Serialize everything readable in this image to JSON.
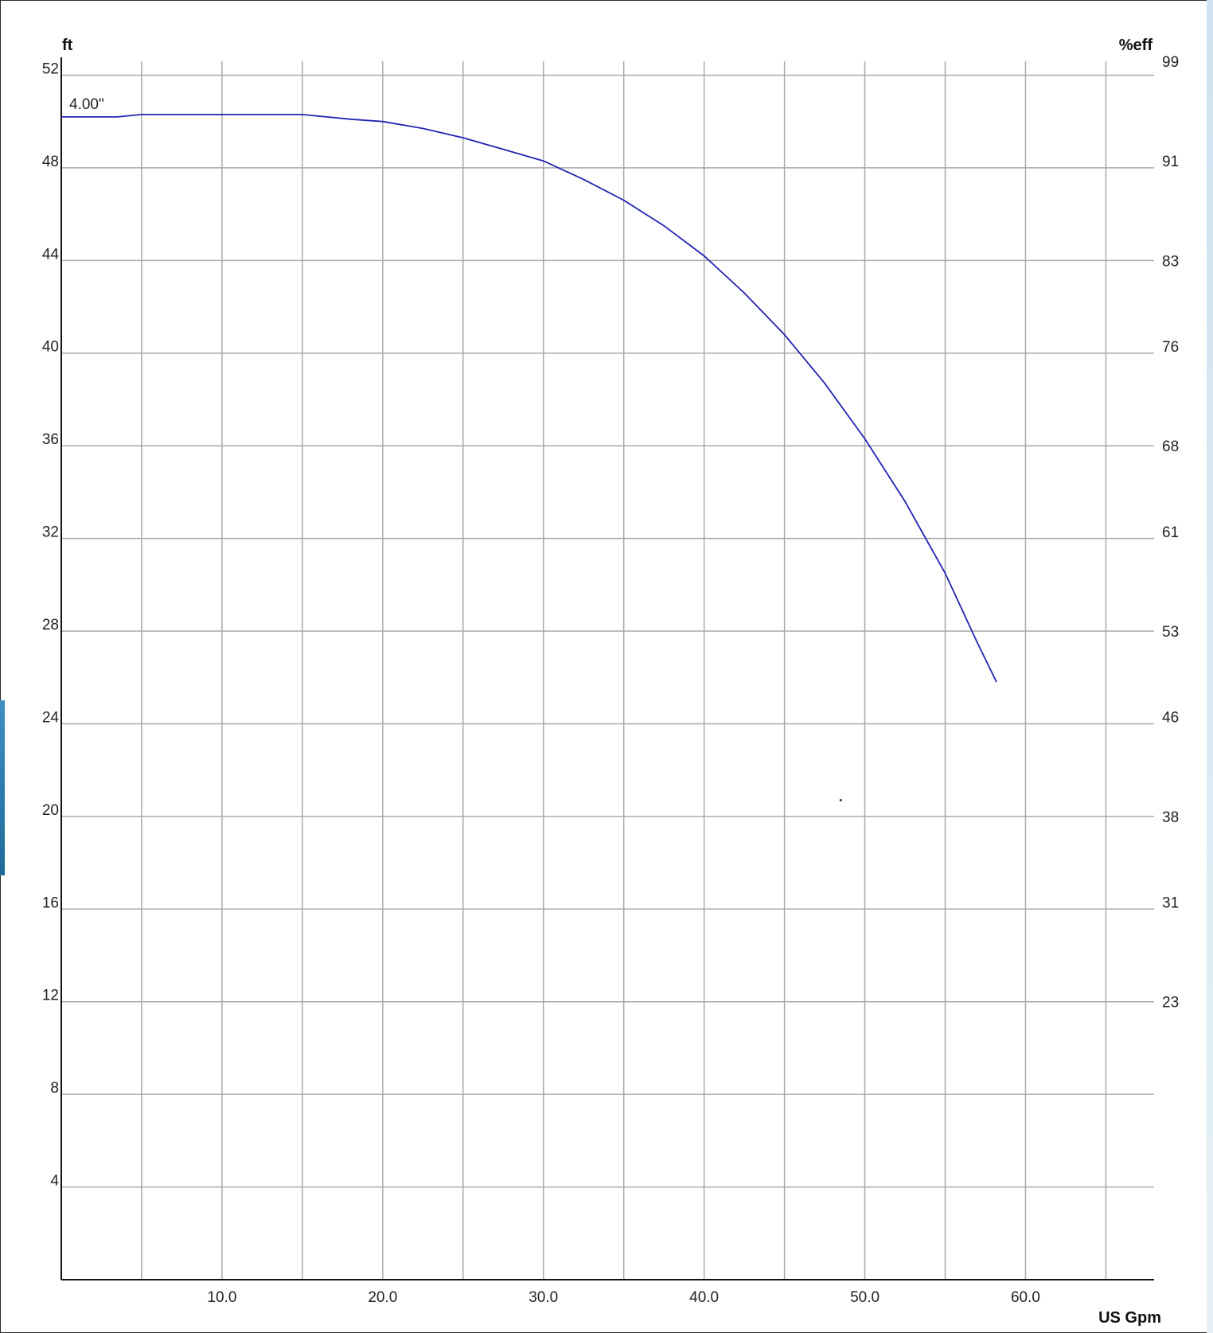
{
  "chart_data": {
    "type": "line",
    "xlabel": "US Gpm",
    "ylabel": "ft",
    "y2label": "%eff",
    "xlim": [
      0,
      68
    ],
    "ylim": [
      0,
      52.6
    ],
    "x_ticks": [
      10,
      20,
      30,
      40,
      50,
      60
    ],
    "x_tick_labels": [
      "10.0",
      "20.0",
      "30.0",
      "40.0",
      "50.0",
      "60.0"
    ],
    "y_ticks": [
      4,
      8,
      12,
      16,
      20,
      24,
      28,
      32,
      36,
      40,
      44,
      48,
      52
    ],
    "y_tick_labels": [
      "4",
      "8",
      "12",
      "16",
      "20",
      "24",
      "28",
      "32",
      "36",
      "40",
      "44",
      "48",
      "52"
    ],
    "y2_ticks": [
      {
        "label": "99",
        "at_y": 52.6
      },
      {
        "label": "91",
        "at_y": 48.3
      },
      {
        "label": "83",
        "at_y": 44.0
      },
      {
        "label": "76",
        "at_y": 40.3
      },
      {
        "label": "68",
        "at_y": 36.0
      },
      {
        "label": "61",
        "at_y": 32.3
      },
      {
        "label": "53",
        "at_y": 28.0
      },
      {
        "label": "46",
        "at_y": 24.3
      },
      {
        "label": "38",
        "at_y": 20.0
      },
      {
        "label": "31",
        "at_y": 16.3
      },
      {
        "label": "23",
        "at_y": 12.0
      }
    ],
    "x_gridlines": [
      5,
      10,
      15,
      20,
      25,
      30,
      35,
      40,
      45,
      50,
      55,
      60,
      65
    ],
    "y_gridlines": [
      4,
      8,
      12,
      16,
      20,
      24,
      28,
      32,
      36,
      40,
      44,
      48,
      52
    ],
    "grid": true,
    "series": [
      {
        "name": "4.00\"",
        "color": "#2323b4",
        "x": [
          0,
          3.5,
          5,
          10,
          15,
          18,
          20,
          22.5,
          25,
          27.5,
          30,
          32.5,
          35,
          37.5,
          40,
          42.5,
          45,
          47.5,
          50,
          52.5,
          55,
          57,
          58.2
        ],
        "y": [
          50.2,
          50.2,
          50.3,
          50.3,
          50.3,
          50.1,
          50.0,
          49.7,
          49.3,
          48.8,
          48.3,
          47.5,
          46.6,
          45.5,
          44.2,
          42.6,
          40.8,
          38.7,
          36.3,
          33.6,
          30.5,
          27.5,
          25.8
        ]
      }
    ],
    "curve_label": "4.00\"",
    "stray_point": {
      "x": 48.5,
      "y": 20.7
    }
  }
}
